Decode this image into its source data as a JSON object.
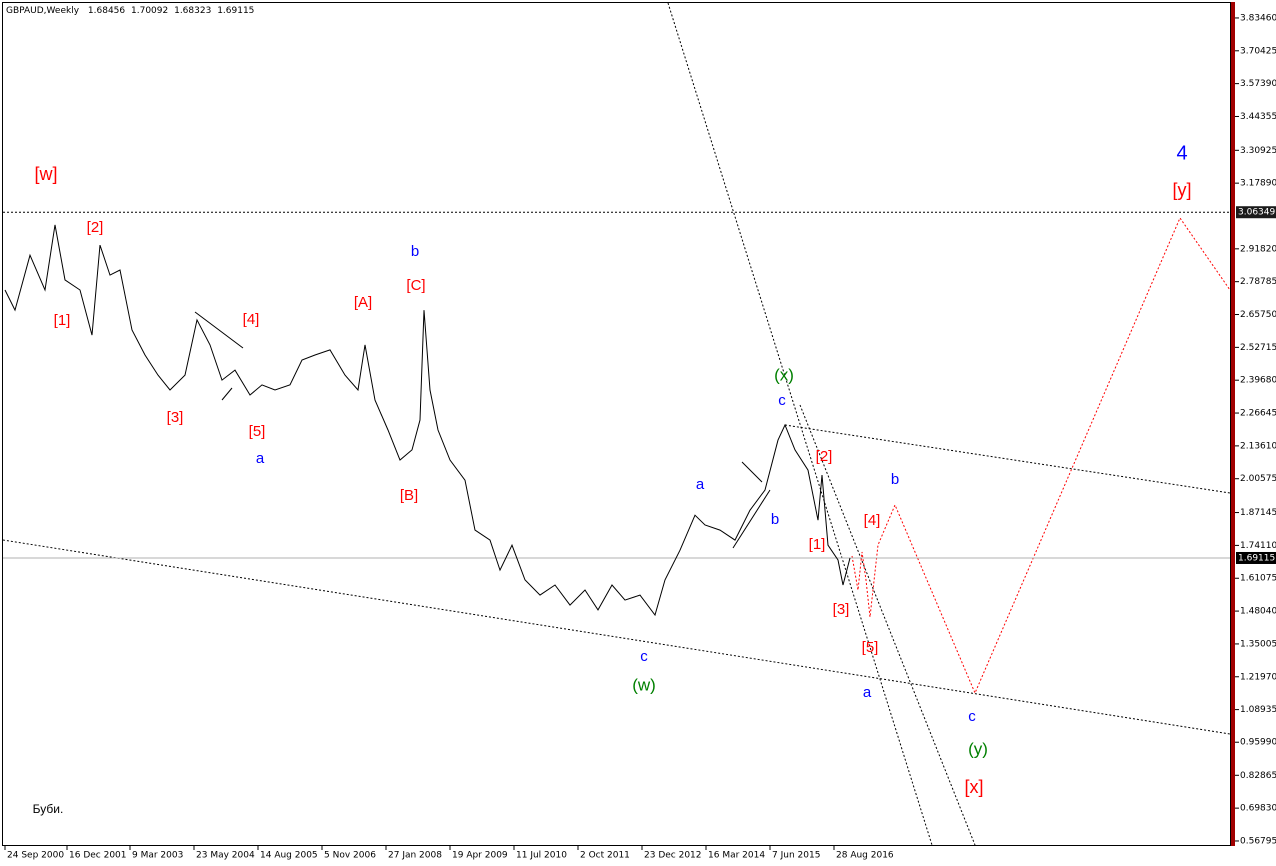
{
  "chart_data": {
    "type": "line",
    "header": {
      "symbol": "GBPAUD,Weekly",
      "open": 1.68456,
      "high": 1.70092,
      "low": 1.68323,
      "close": 1.69115
    },
    "x": [
      0,
      10,
      25,
      40,
      50,
      60,
      75,
      87,
      95,
      105,
      115,
      127,
      140,
      153,
      165,
      180,
      192,
      205,
      217,
      230,
      245,
      257,
      270,
      285,
      297,
      310,
      325,
      340,
      353,
      360,
      370,
      383,
      395,
      407,
      415,
      419,
      425,
      433,
      445,
      460,
      470,
      485,
      495,
      507,
      520,
      535,
      550,
      565,
      580,
      593,
      607,
      620,
      635,
      650,
      660,
      675,
      690,
      700,
      715,
      730,
      745,
      760,
      773,
      780,
      790,
      803,
      813,
      817,
      823,
      833,
      838,
      845
    ],
    "values": [
      2.755,
      2.675,
      2.893,
      2.755,
      3.013,
      2.795,
      2.755,
      2.576,
      2.933,
      2.814,
      2.834,
      2.596,
      2.497,
      2.417,
      2.358,
      2.417,
      2.636,
      2.537,
      2.397,
      2.437,
      2.338,
      2.378,
      2.358,
      2.378,
      2.477,
      2.497,
      2.517,
      2.417,
      2.358,
      2.537,
      2.318,
      2.199,
      2.08,
      2.12,
      2.239,
      2.675,
      2.358,
      2.199,
      2.08,
      2.0,
      1.802,
      1.762,
      1.643,
      1.742,
      1.604,
      1.544,
      1.584,
      1.504,
      1.564,
      1.485,
      1.584,
      1.524,
      1.544,
      1.465,
      1.604,
      1.722,
      1.861,
      1.822,
      1.802,
      1.762,
      1.881,
      1.961,
      2.159,
      2.219,
      2.12,
      2.04,
      1.841,
      2.02,
      1.742,
      1.683,
      1.584,
      1.691
    ],
    "color": "#000000",
    "xlim": [
      -2,
      1225
    ],
    "ylim": [
      0.548,
      3.886
    ],
    "xticks": [
      {
        "value": 0,
        "label": "24 Sep 2000"
      },
      {
        "value": 62,
        "label": "16 Dec 2001"
      },
      {
        "value": 125,
        "label": "9 Mar 2003"
      },
      {
        "value": 189,
        "label": "23 May 2004"
      },
      {
        "value": 253,
        "label": "14 Aug 2005"
      },
      {
        "value": 317,
        "label": "5 Nov 2006"
      },
      {
        "value": 381,
        "label": "27 Jan 2008"
      },
      {
        "value": 445,
        "label": "19 Apr 2009"
      },
      {
        "value": 509,
        "label": "11 Jul 2010"
      },
      {
        "value": 573,
        "label": "2 Oct 2011"
      },
      {
        "value": 637,
        "label": "23 Dec 2012"
      },
      {
        "value": 701,
        "label": "16 Mar 2014"
      },
      {
        "value": 765,
        "label": "7 Jun 2015"
      },
      {
        "value": 829,
        "label": "28 Aug 2016"
      }
    ],
    "yticks": [
      {
        "value": 3.8346,
        "label": "3.83460"
      },
      {
        "value": 3.70425,
        "label": "3.70425"
      },
      {
        "value": 3.5739,
        "label": "3.57390"
      },
      {
        "value": 3.44355,
        "label": "3.44355"
      },
      {
        "value": 3.30925,
        "label": "3.30925"
      },
      {
        "value": 3.1789,
        "label": "3.17890"
      },
      {
        "value": 2.9182,
        "label": "2.91820"
      },
      {
        "value": 2.78785,
        "label": "2.78785"
      },
      {
        "value": 2.6575,
        "label": "2.65750"
      },
      {
        "value": 2.52715,
        "label": "2.52715"
      },
      {
        "value": 2.3968,
        "label": "2.39680"
      },
      {
        "value": 2.26645,
        "label": "2.26645"
      },
      {
        "value": 2.1361,
        "label": "2.13610"
      },
      {
        "value": 2.00575,
        "label": "2.00575"
      },
      {
        "value": 1.87145,
        "label": "1.87145"
      },
      {
        "value": 1.7411,
        "label": "1.74110"
      },
      {
        "value": 1.61075,
        "label": "1.61075"
      },
      {
        "value": 1.4804,
        "label": "1.48040"
      },
      {
        "value": 1.35005,
        "label": "1.35005"
      },
      {
        "value": 1.2197,
        "label": "1.21970"
      },
      {
        "value": 1.08935,
        "label": "1.08935"
      },
      {
        "value": 0.9599,
        "label": "0.95990"
      },
      {
        "value": 0.82865,
        "label": "0.82865"
      },
      {
        "value": 0.6983,
        "label": "0.69830"
      },
      {
        "value": 0.56795,
        "label": "0.56795"
      }
    ],
    "level_lines": [
      3.06349,
      1.69115
    ],
    "annotations": [
      {
        "text": "[w]",
        "color": "#ff0000"
      },
      {
        "text": "[2]",
        "color": "#ff0000"
      },
      {
        "text": "[1]",
        "color": "#ff0000"
      },
      {
        "text": "[3]",
        "color": "#ff0000"
      },
      {
        "text": "[4]",
        "color": "#ff0000"
      },
      {
        "text": "[5]",
        "color": "#ff0000"
      },
      {
        "text": "a",
        "color": "#0000ff"
      },
      {
        "text": "b",
        "color": "#0000ff"
      },
      {
        "text": "[C]",
        "color": "#ff0000"
      },
      {
        "text": "[A]",
        "color": "#ff0000"
      },
      {
        "text": "[B]",
        "color": "#ff0000"
      },
      {
        "text": "a",
        "color": "#0000ff"
      },
      {
        "text": "b",
        "color": "#0000ff"
      },
      {
        "text": "(x)",
        "color": "#008000"
      },
      {
        "text": "c",
        "color": "#0000ff"
      },
      {
        "text": "[2]",
        "color": "#ff0000"
      },
      {
        "text": "[1]",
        "color": "#ff0000"
      },
      {
        "text": "[4]",
        "color": "#ff0000"
      },
      {
        "text": "[3]",
        "color": "#ff0000"
      },
      {
        "text": "[5]",
        "color": "#ff0000"
      },
      {
        "text": "b",
        "color": "#0000ff"
      },
      {
        "text": "a",
        "color": "#0000ff"
      },
      {
        "text": "c",
        "color": "#0000ff"
      },
      {
        "text": "(w)",
        "color": "#008000"
      },
      {
        "text": "c",
        "color": "#0000ff"
      },
      {
        "text": "(y)",
        "color": "#008000"
      },
      {
        "text": "[x]",
        "color": "#ff0000"
      },
      {
        "text": "4",
        "color": "#0000ff"
      },
      {
        "text": "[y]",
        "color": "#ff0000"
      },
      {
        "text": "Буби.",
        "color": "#000000"
      }
    ]
  }
}
